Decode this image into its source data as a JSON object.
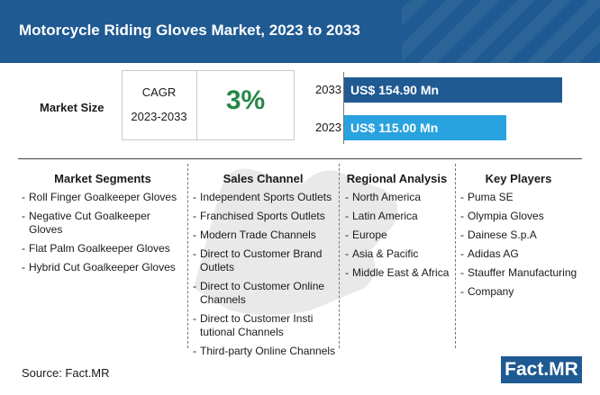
{
  "header": {
    "title": "Motorcycle Riding Gloves Market, 2023 to 2033"
  },
  "market_size": {
    "label": "Market Size",
    "cagr_label": "CAGR",
    "cagr_period": "2023-2033",
    "cagr_value": "3%"
  },
  "chart_data": {
    "type": "bar",
    "orientation": "horizontal",
    "categories": [
      "2033",
      "2023"
    ],
    "values": [
      154.9,
      115.0
    ],
    "data_labels": [
      "US$ 154.90 Mn",
      "US$ 115.00 Mn"
    ],
    "colors": [
      "#1f5a92",
      "#29a3df"
    ],
    "title": "",
    "xlabel": "",
    "ylabel": ""
  },
  "columns": [
    {
      "title": "Market Segments",
      "items": [
        "Roll Finger Goalkeeper Gloves",
        "Negative Cut Goalkeeper Gloves",
        "Flat Palm Goalkeeper Gloves",
        "Hybrid Cut Goalkeeper Gloves"
      ]
    },
    {
      "title": "Sales Channel",
      "items": [
        "Independent Sports Outlets",
        "Franchised Sports Outlets",
        "Modern Trade Channels",
        "Direct to Customer Brand Outlets",
        "Direct to Customer Online Channels",
        "Direct to Customer Insti tutional Channels",
        "Third-party Online Channels"
      ]
    },
    {
      "title": "Regional Analysis",
      "items": [
        "North America",
        "Latin America",
        "Europe",
        "Asia & Pacific",
        "Middle East & Africa"
      ]
    },
    {
      "title": "Key Players",
      "items": [
        "Puma SE",
        "Olympia Gloves",
        "Dainese S.p.A",
        "Adidas AG",
        "Stauffer Manufacturing",
        "Company"
      ]
    }
  ],
  "footer": {
    "source": "Source: Fact.MR",
    "logo": "Fact.MR"
  },
  "colors": {
    "header": "#1f5a92",
    "accent": "#27864a",
    "bar_2033": "#1f5a92",
    "bar_2023": "#29a3df"
  },
  "icons": {
    "watermark": "glove-icon"
  }
}
